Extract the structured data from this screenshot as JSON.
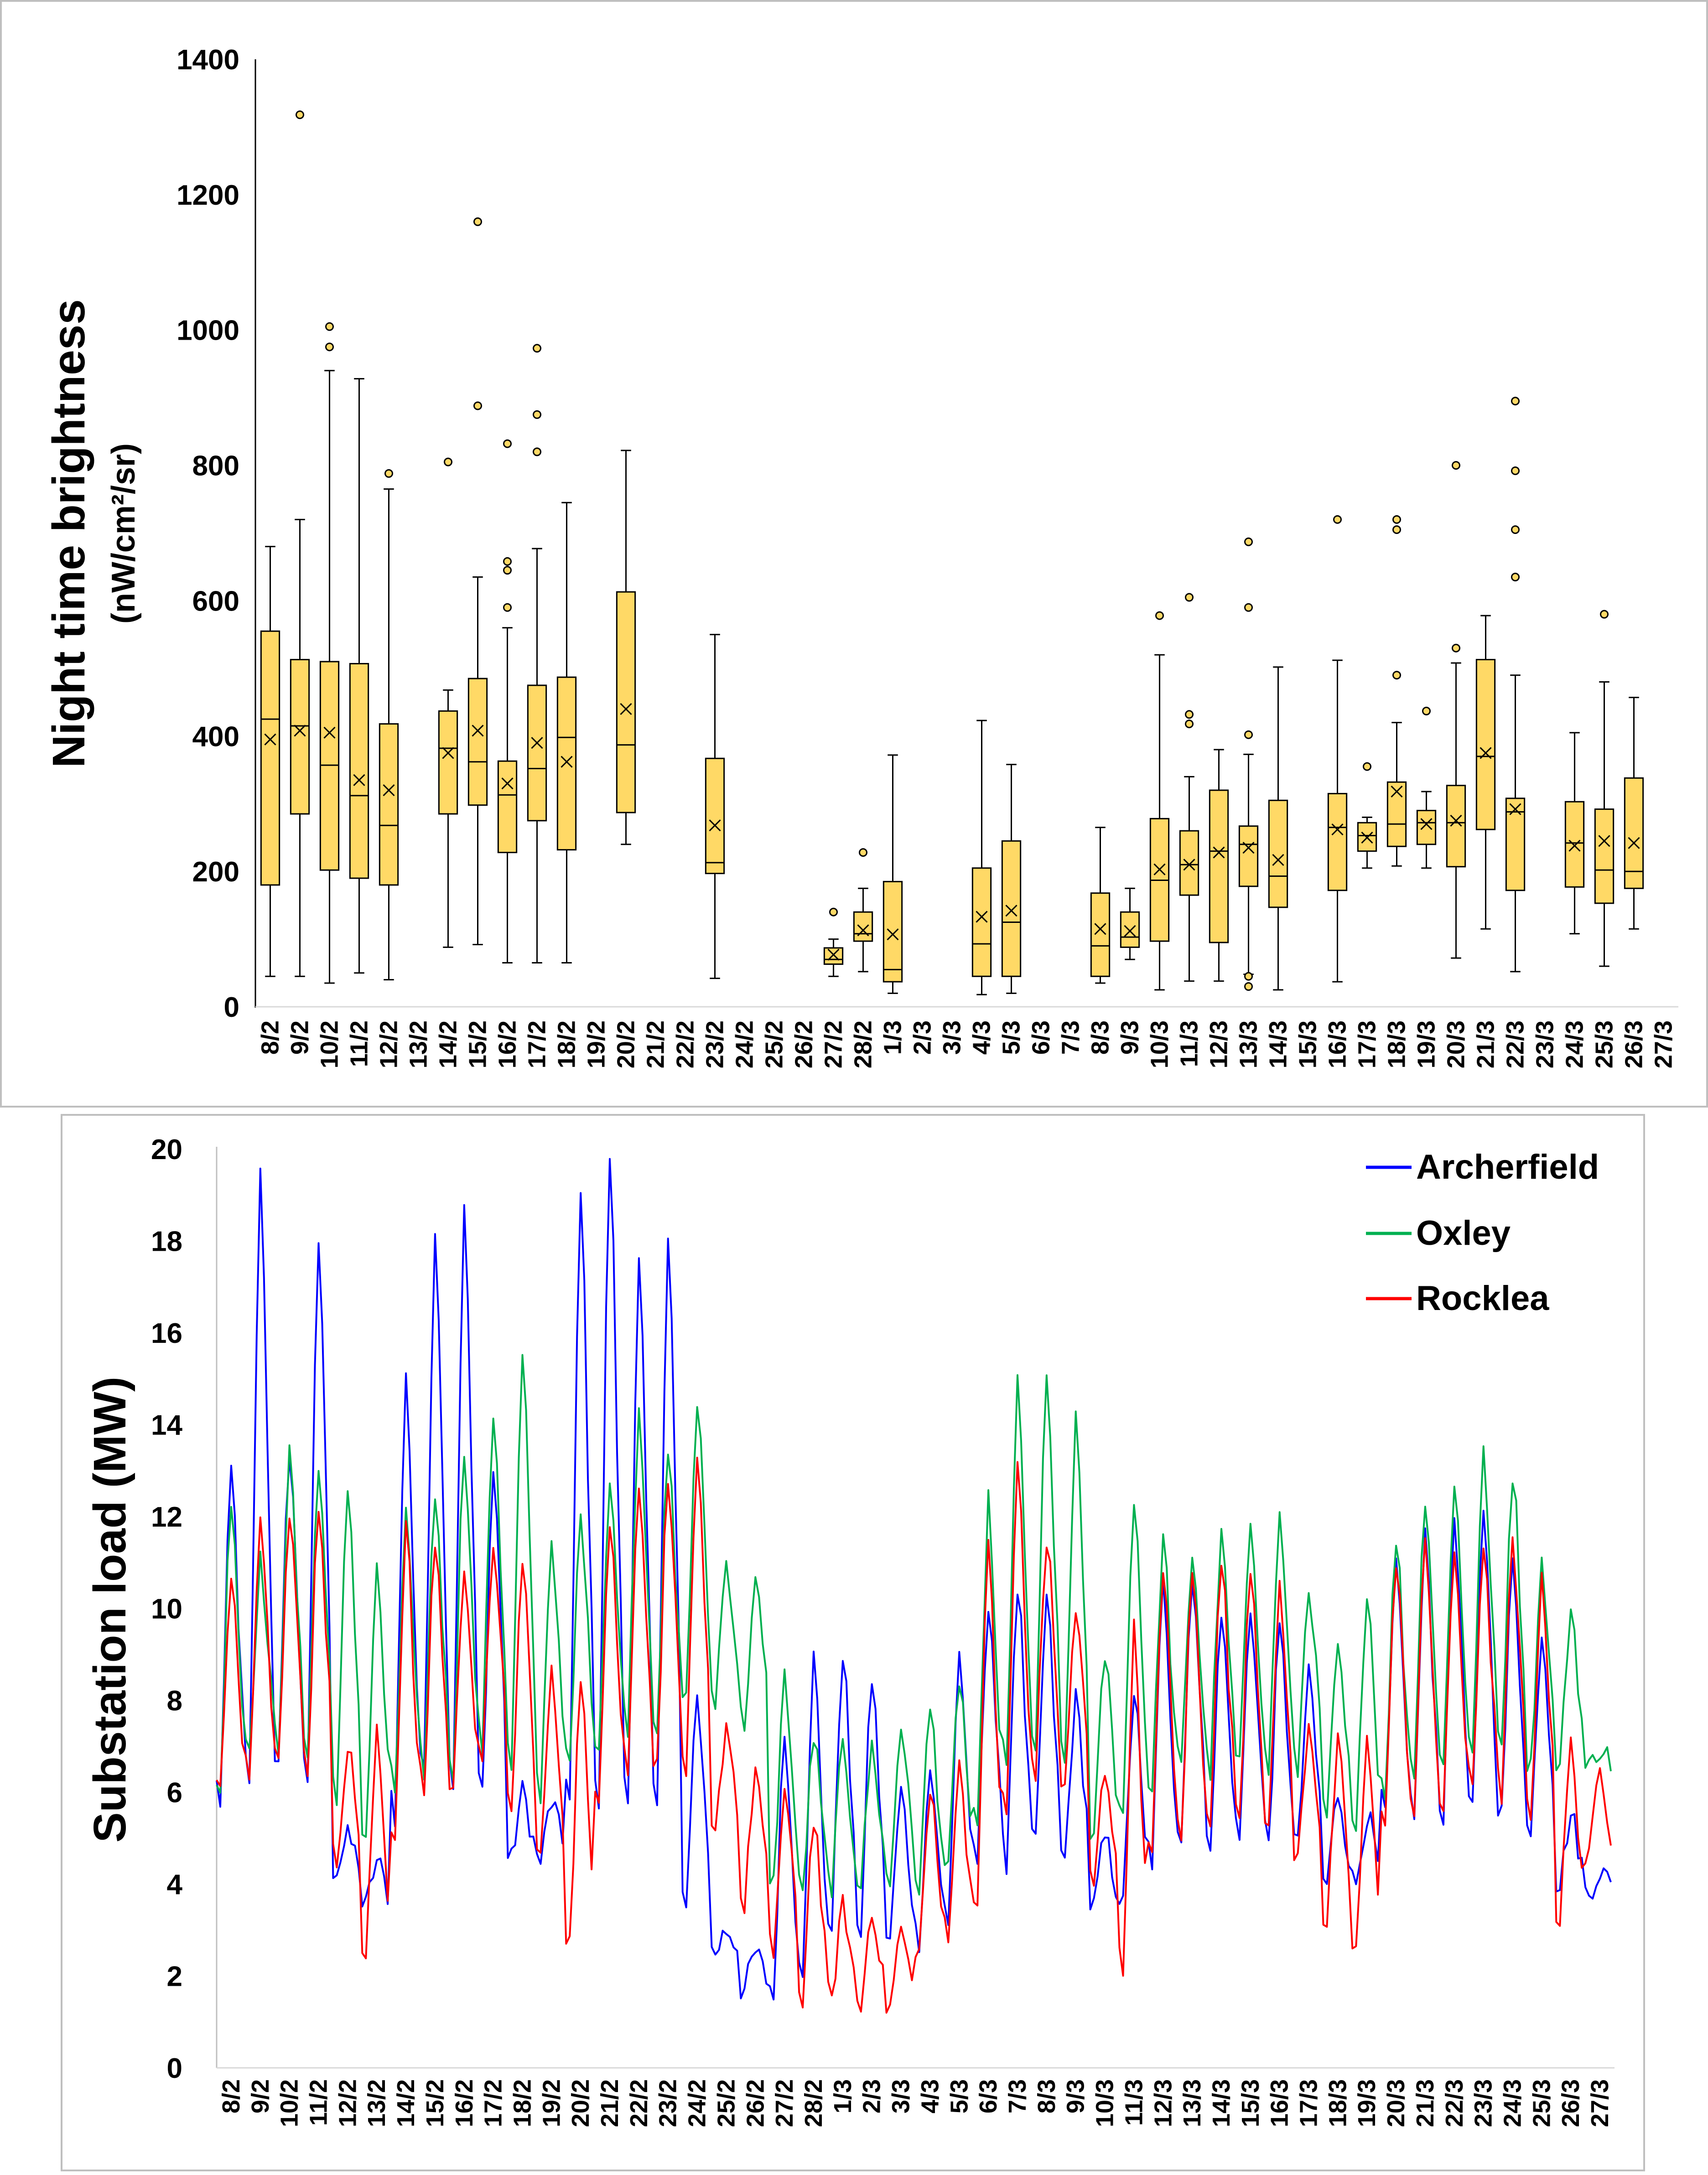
{
  "chart_data": [
    {
      "type": "box",
      "ylabel": "Night time brightness",
      "ylabel_units": "(nW/cm²/sr)",
      "ylim": [
        0,
        1400
      ],
      "yticks": [
        0,
        200,
        400,
        600,
        800,
        1000,
        1200,
        1400
      ],
      "grid": false,
      "box_color": "#FFD966",
      "edge_color": "#000000",
      "categories": [
        "8/2",
        "9/2",
        "10/2",
        "11/2",
        "12/2",
        "13/2",
        "14/2",
        "15/2",
        "16/2",
        "17/2",
        "18/2",
        "19/2",
        "20/2",
        "21/2",
        "22/2",
        "23/2",
        "24/2",
        "25/2",
        "26/2",
        "27/2",
        "28/2",
        "1/3",
        "2/3",
        "3/3",
        "4/3",
        "5/3",
        "6/3",
        "7/3",
        "8/3",
        "9/3",
        "10/3",
        "11/3",
        "12/3",
        "13/3",
        "14/3",
        "15/3",
        "16/3",
        "17/3",
        "18/3",
        "19/3",
        "20/3",
        "21/3",
        "22/3",
        "23/3",
        "24/3",
        "25/3",
        "26/3",
        "27/3"
      ],
      "boxes": [
        {
          "cat": "8/2",
          "min": 45,
          "q1": 180,
          "median": 425,
          "q3": 555,
          "max": 680,
          "mean": 395,
          "outliers": []
        },
        {
          "cat": "9/2",
          "min": 45,
          "q1": 285,
          "median": 415,
          "q3": 513,
          "max": 720,
          "mean": 408,
          "outliers": [
            1318
          ]
        },
        {
          "cat": "10/2",
          "min": 35,
          "q1": 202,
          "median": 357,
          "q3": 510,
          "max": 940,
          "mean": 405,
          "outliers": [
            975,
            1005
          ]
        },
        {
          "cat": "11/2",
          "min": 50,
          "q1": 190,
          "median": 312,
          "q3": 507,
          "max": 928,
          "mean": 335,
          "outliers": []
        },
        {
          "cat": "12/2",
          "min": 40,
          "q1": 180,
          "median": 268,
          "q3": 418,
          "max": 765,
          "mean": 320,
          "outliers": [
            788
          ]
        },
        {
          "cat": "14/2",
          "min": 88,
          "q1": 285,
          "median": 382,
          "q3": 437,
          "max": 468,
          "mean": 375,
          "outliers": [
            805
          ]
        },
        {
          "cat": "15/2",
          "min": 92,
          "q1": 298,
          "median": 362,
          "q3": 485,
          "max": 635,
          "mean": 408,
          "outliers": [
            888,
            1160
          ]
        },
        {
          "cat": "16/2",
          "min": 65,
          "q1": 228,
          "median": 313,
          "q3": 363,
          "max": 560,
          "mean": 330,
          "outliers": [
            590,
            645,
            658,
            832
          ]
        },
        {
          "cat": "17/2",
          "min": 65,
          "q1": 275,
          "median": 352,
          "q3": 475,
          "max": 677,
          "mean": 390,
          "outliers": [
            820,
            875,
            973
          ]
        },
        {
          "cat": "18/2",
          "min": 65,
          "q1": 232,
          "median": 398,
          "q3": 487,
          "max": 745,
          "mean": 362,
          "outliers": []
        },
        {
          "cat": "20/2",
          "min": 240,
          "q1": 287,
          "median": 387,
          "q3": 613,
          "max": 822,
          "mean": 440,
          "outliers": []
        },
        {
          "cat": "23/2",
          "min": 42,
          "q1": 197,
          "median": 213,
          "q3": 367,
          "max": 550,
          "mean": 268,
          "outliers": []
        },
        {
          "cat": "27/2",
          "min": 45,
          "q1": 63,
          "median": 70,
          "q3": 87,
          "max": 100,
          "mean": 77,
          "outliers": [
            140
          ]
        },
        {
          "cat": "28/2",
          "min": 52,
          "q1": 97,
          "median": 108,
          "q3": 140,
          "max": 175,
          "mean": 113,
          "outliers": [
            228
          ]
        },
        {
          "cat": "1/3",
          "min": 20,
          "q1": 37,
          "median": 55,
          "q3": 185,
          "max": 372,
          "mean": 107,
          "outliers": []
        },
        {
          "cat": "4/3",
          "min": 18,
          "q1": 45,
          "median": 93,
          "q3": 205,
          "max": 423,
          "mean": 133,
          "outliers": []
        },
        {
          "cat": "5/3",
          "min": 20,
          "q1": 45,
          "median": 125,
          "q3": 245,
          "max": 358,
          "mean": 142,
          "outliers": []
        },
        {
          "cat": "8/3",
          "min": 35,
          "q1": 45,
          "median": 90,
          "q3": 168,
          "max": 265,
          "mean": 115,
          "outliers": []
        },
        {
          "cat": "9/3",
          "min": 70,
          "q1": 88,
          "median": 103,
          "q3": 140,
          "max": 175,
          "mean": 112,
          "outliers": []
        },
        {
          "cat": "10/3",
          "min": 25,
          "q1": 97,
          "median": 187,
          "q3": 278,
          "max": 520,
          "mean": 203,
          "outliers": [
            578
          ]
        },
        {
          "cat": "11/3",
          "min": 38,
          "q1": 165,
          "median": 210,
          "q3": 260,
          "max": 340,
          "mean": 210,
          "outliers": [
            418,
            432,
            605
          ]
        },
        {
          "cat": "12/3",
          "min": 38,
          "q1": 95,
          "median": 230,
          "q3": 320,
          "max": 380,
          "mean": 228,
          "outliers": []
        },
        {
          "cat": "13/3",
          "min": 48,
          "q1": 178,
          "median": 240,
          "q3": 267,
          "max": 373,
          "mean": 235,
          "outliers": [
            30,
            45,
            402,
            590,
            687
          ]
        },
        {
          "cat": "14/3",
          "min": 25,
          "q1": 147,
          "median": 193,
          "q3": 305,
          "max": 502,
          "mean": 217,
          "outliers": []
        },
        {
          "cat": "16/3",
          "min": 37,
          "q1": 172,
          "median": 265,
          "q3": 315,
          "max": 512,
          "mean": 262,
          "outliers": [
            720
          ]
        },
        {
          "cat": "17/3",
          "min": 205,
          "q1": 230,
          "median": 253,
          "q3": 272,
          "max": 280,
          "mean": 250,
          "outliers": [
            355
          ]
        },
        {
          "cat": "18/3",
          "min": 208,
          "q1": 237,
          "median": 270,
          "q3": 332,
          "max": 420,
          "mean": 318,
          "outliers": [
            490,
            705,
            720
          ]
        },
        {
          "cat": "19/3",
          "min": 205,
          "q1": 240,
          "median": 272,
          "q3": 290,
          "max": 318,
          "mean": 270,
          "outliers": [
            437
          ]
        },
        {
          "cat": "20/3",
          "min": 72,
          "q1": 207,
          "median": 272,
          "q3": 327,
          "max": 508,
          "mean": 275,
          "outliers": [
            530,
            800
          ]
        },
        {
          "cat": "21/3",
          "min": 115,
          "q1": 262,
          "median": 370,
          "q3": 513,
          "max": 578,
          "mean": 375,
          "outliers": []
        },
        {
          "cat": "22/3",
          "min": 52,
          "q1": 172,
          "median": 288,
          "q3": 308,
          "max": 490,
          "mean": 292,
          "outliers": [
            635,
            705,
            792,
            895
          ]
        },
        {
          "cat": "24/3",
          "min": 108,
          "q1": 177,
          "median": 242,
          "q3": 303,
          "max": 405,
          "mean": 238,
          "outliers": []
        },
        {
          "cat": "25/3",
          "min": 60,
          "q1": 153,
          "median": 202,
          "q3": 292,
          "max": 480,
          "mean": 245,
          "outliers": [
            580
          ]
        },
        {
          "cat": "26/3",
          "min": 115,
          "q1": 175,
          "median": 200,
          "q3": 338,
          "max": 457,
          "mean": 242,
          "outliers": []
        }
      ]
    },
    {
      "type": "line",
      "ylabel": "Substation load (MW)",
      "ylim": [
        0,
        20
      ],
      "yticks": [
        0,
        2,
        4,
        6,
        8,
        10,
        12,
        14,
        16,
        18,
        20
      ],
      "grid": false,
      "legend_position": "top-right",
      "categories": [
        "8/2",
        "9/2",
        "10/2",
        "11/2",
        "12/2",
        "13/2",
        "14/2",
        "15/2",
        "16/2",
        "17/2",
        "18/2",
        "19/2",
        "20/2",
        "21/2",
        "22/2",
        "23/2",
        "24/2",
        "25/2",
        "26/2",
        "27/2",
        "28/2",
        "1/3",
        "2/3",
        "3/3",
        "4/3",
        "5/3",
        "6/3",
        "7/3",
        "8/3",
        "9/3",
        "10/3",
        "11/3",
        "12/3",
        "13/3",
        "14/3",
        "15/3",
        "16/3",
        "17/3",
        "18/3",
        "19/3",
        "20/3",
        "21/3",
        "22/3",
        "23/3",
        "24/3",
        "25/3",
        "26/3",
        "27/3"
      ],
      "samples_per_day": 8,
      "series": [
        {
          "name": "Archerfield",
          "color": "#0000FF",
          "daily_peak": [
            13.0,
            19.4,
            13.5,
            18.0,
            5.0,
            4.5,
            15.0,
            18.3,
            18.6,
            13.0,
            6.0,
            5.8,
            19.0,
            19.9,
            17.5,
            18.2,
            8.0,
            3.0,
            2.5,
            7.3,
            8.9,
            9.1,
            8.5,
            6.0,
            6.5,
            9.0,
            10.2,
            10.5,
            10.2,
            8.0,
            5.0,
            8.2,
            10.5,
            10.8,
            9.8,
            10.0,
            9.5,
            8.5,
            6.0,
            5.5,
            10.8,
            11.5,
            12.0,
            12.2,
            11.0,
            9.5,
            5.5,
            4.3
          ],
          "daily_trough": [
            5.8,
            6.0,
            6.5,
            6.3,
            4.3,
            3.5,
            5.5,
            6.3,
            6.2,
            6.0,
            4.5,
            4.5,
            5.8,
            5.8,
            5.8,
            5.5,
            3.5,
            2.5,
            1.7,
            1.5,
            2.2,
            3.0,
            3.0,
            2.8,
            2.8,
            3.2,
            4.5,
            4.5,
            4.8,
            4.5,
            3.5,
            3.5,
            4.5,
            5.0,
            5.0,
            5.0,
            5.0,
            4.8,
            4.0,
            4.0,
            5.5,
            5.5,
            5.5,
            5.5,
            5.5,
            5.0,
            4.0,
            3.8
          ]
        },
        {
          "name": "Oxley",
          "color": "#00B050",
          "daily_peak": [
            12.5,
            11.0,
            13.3,
            13.0,
            12.4,
            10.8,
            12.0,
            12.5,
            13.5,
            14.3,
            15.4,
            11.5,
            12.0,
            12.8,
            14.3,
            13.3,
            14.5,
            11.0,
            10.5,
            8.5,
            7.2,
            7.0,
            7.0,
            7.5,
            7.8,
            8.5,
            12.3,
            14.8,
            15.0,
            14.0,
            9.0,
            12.5,
            11.5,
            11.2,
            11.5,
            12.0,
            12.0,
            10.5,
            9.0,
            10.5,
            11.5,
            12.5,
            12.8,
            13.3,
            13.0,
            11.0,
            10.0,
            7.0
          ],
          "daily_trough": [
            6.0,
            7.0,
            7.0,
            7.0,
            6.0,
            5.0,
            6.0,
            6.5,
            6.5,
            7.0,
            6.5,
            6.0,
            6.5,
            7.0,
            7.5,
            7.5,
            8.0,
            8.0,
            7.5,
            4.0,
            3.8,
            4.0,
            4.0,
            4.0,
            4.0,
            4.2,
            5.0,
            6.5,
            7.0,
            6.5,
            5.0,
            5.5,
            6.0,
            6.5,
            6.5,
            6.5,
            6.5,
            6.5,
            5.5,
            5.0,
            6.0,
            6.5,
            6.5,
            7.0,
            7.0,
            6.5,
            6.5,
            6.5
          ]
        },
        {
          "name": "Rocklea",
          "color": "#FF0000",
          "daily_peak": [
            10.5,
            12.0,
            12.0,
            12.3,
            7.0,
            7.2,
            11.8,
            11.5,
            11.0,
            11.5,
            11.0,
            8.5,
            8.3,
            12.0,
            12.8,
            13.0,
            13.0,
            7.5,
            6.5,
            6.0,
            5.5,
            3.5,
            3.5,
            3.0,
            6.0,
            6.5,
            11.5,
            13.1,
            11.5,
            10.0,
            6.5,
            9.5,
            11.0,
            10.8,
            11.0,
            11.0,
            10.5,
            7.5,
            7.0,
            7.0,
            11.0,
            11.5,
            11.3,
            11.5,
            11.3,
            10.5,
            7.0,
            6.5
          ],
          "daily_trough": [
            6.0,
            6.5,
            7.0,
            6.5,
            4.5,
            2.3,
            5.0,
            6.0,
            6.0,
            6.5,
            5.5,
            4.5,
            2.7,
            6.0,
            6.5,
            6.5,
            6.5,
            5.0,
            3.5,
            2.5,
            1.5,
            1.5,
            1.3,
            1.3,
            2.5,
            3.0,
            3.5,
            5.5,
            6.5,
            6.0,
            4.0,
            2.0,
            4.5,
            5.0,
            5.5,
            5.5,
            5.0,
            4.5,
            3.0,
            2.5,
            5.5,
            5.5,
            5.5,
            6.0,
            6.0,
            5.5,
            3.2,
            4.5
          ]
        }
      ]
    }
  ]
}
